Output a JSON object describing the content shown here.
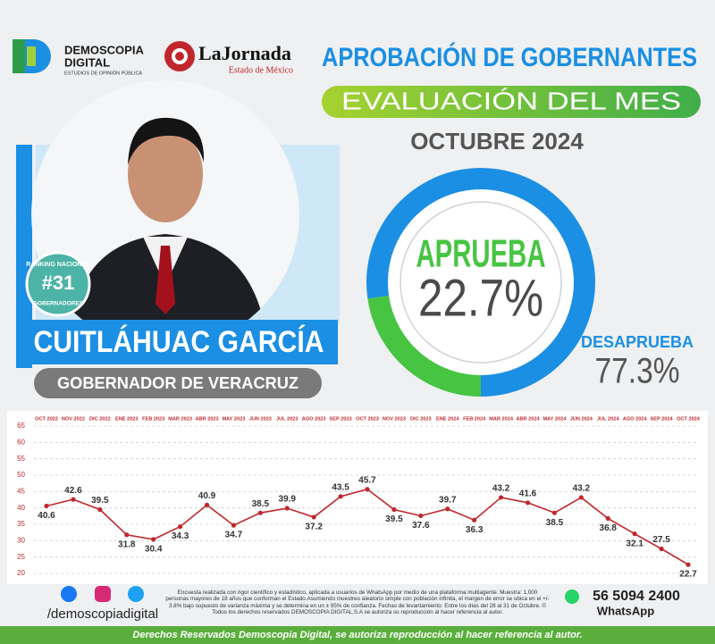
{
  "header": {
    "logo_name": "DEMOSCOPIA",
    "logo_name2": "DIGITAL",
    "logo_tagline": "ESTUDIOS DE OPINIÓN PÚBLICA",
    "partner": "LaJornada",
    "partner_sub": "Estado de México",
    "title": "APROBACIÓN DE GOBERNANTES",
    "subtitle": "EVALUACIÓN DEL MES",
    "period": "OCTUBRE 2024"
  },
  "profile": {
    "ranking_top": "RANKING NACIONAL",
    "ranking": "#31",
    "ranking_bottom": "GOBERNADORES",
    "name": "CUITLÁHUAC GARCÍA",
    "role": "GOBERNADOR DE VERACRUZ"
  },
  "chart_data": [
    {
      "type": "pie",
      "categories": [
        "APRUEBA",
        "DESAPRUEBA"
      ],
      "values": [
        22.7,
        77.3
      ],
      "value_labels": [
        "22.7%",
        "77.3%"
      ],
      "colors": [
        "#48c443",
        "#1b8fe3"
      ]
    },
    {
      "type": "line",
      "categories": [
        "OCT 2022",
        "NOV 2022",
        "DIC 2022",
        "ENE 2023",
        "FEB 2023",
        "MAR 2023",
        "ABR 2023",
        "MAY 2023",
        "JUN 2023",
        "JUL 2023",
        "AGO 2023",
        "SEP 2023",
        "OCT 2023",
        "NOV 2023",
        "DIC 2023",
        "ENE 2024",
        "FEB 2024",
        "MAR 2024",
        "ABR 2024",
        "MAY 2024",
        "JUN 2024",
        "JUL 2024",
        "AGO 2024",
        "SEP 2024",
        "OCT 2024"
      ],
      "values": [
        40.6,
        42.6,
        39.5,
        31.8,
        30.4,
        34.3,
        40.9,
        34.7,
        38.5,
        39.9,
        37.2,
        43.5,
        45.7,
        39.5,
        37.6,
        39.7,
        36.3,
        43.2,
        41.6,
        38.5,
        43.2,
        36.8,
        32.1,
        27.5,
        22.7
      ],
      "color": "#c0272d",
      "ylim": [
        20,
        65
      ],
      "yticks": [
        20,
        25,
        30,
        35,
        40,
        45,
        50,
        55,
        60,
        65
      ],
      "grid": true
    }
  ],
  "footer": {
    "social": "/demoscopiadigital",
    "note": "Encuesta realizada con rigor científico y estadístico, aplicada a usuarios de WhatsApp por medio de una plataforma multiagente. Muestra: 1,000 personas mayores de 18 años que conforman el Estado.Asumiendo muestreo aleatorio simple con población infinita, el margen de error se ubica en el +/- 3.8% bajo supuesto de varianza máxima y se determina en un ± 95% de confianza. Fechas de levantamiento: Entre los días del 28 al 31 de Octubre. © Todos los derechos reservados DEMOSCOPIA DIGITAL,S.A se autoriza su reproducción al hacer referencia al autor.",
    "phone": "56 5094 2400",
    "phone_label": "WhatsApp",
    "rights": "Derechos Reservados Demoscopia Digital, se autoriza reproducción al hacer referencia al autor."
  }
}
